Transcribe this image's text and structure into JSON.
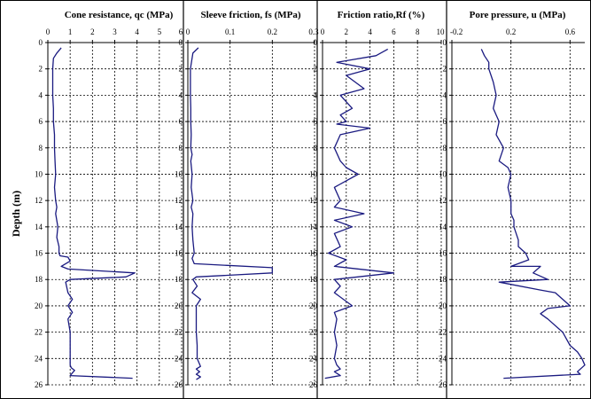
{
  "chart_data": [
    {
      "type": "line",
      "title": "Cone resistance, qc (MPa)",
      "ylabel": "Depth (m)",
      "xlim": [
        0,
        6
      ],
      "xticks": [
        0,
        1,
        2,
        3,
        4,
        5,
        6
      ],
      "ylim": [
        0,
        26
      ],
      "yticks": [
        0,
        2,
        4,
        6,
        8,
        10,
        12,
        14,
        16,
        18,
        20,
        22,
        24,
        26
      ],
      "y_inverted": true,
      "grid": true,
      "line_color": "#1a1a80",
      "series": [
        {
          "x": [
            0.6,
            0.4,
            0.25,
            0.22,
            0.22,
            0.22,
            0.25,
            0.25,
            0.3,
            0.3,
            0.32,
            0.35,
            0.3,
            0.35,
            0.4,
            0.35,
            0.45,
            0.4,
            0.5,
            0.5,
            0.55,
            0.9,
            1.0,
            0.8,
            0.6,
            0.9,
            3.9,
            3.5,
            1.0,
            0.8,
            0.9,
            1.1,
            0.9,
            1.1,
            0.9,
            1.0,
            1.0,
            1.0,
            1.0,
            1.05,
            1.2,
            1.1,
            1.0,
            3.8
          ],
          "y": [
            0.4,
            0.8,
            1.2,
            2,
            3,
            4,
            5,
            6,
            7,
            8,
            9,
            10,
            11,
            12,
            12.5,
            13,
            14,
            14.8,
            15.5,
            16,
            16.2,
            16.3,
            16.6,
            16.8,
            17.0,
            17.2,
            17.5,
            17.8,
            18.0,
            18.2,
            19,
            19.5,
            20,
            20.5,
            21,
            22,
            23,
            24,
            24.5,
            24.7,
            24.9,
            25.1,
            25.3,
            25.5
          ]
        }
      ]
    },
    {
      "type": "line",
      "title": "Sleeve friction, fs (MPa)",
      "xlim": [
        0,
        0.3
      ],
      "xticks": [
        0,
        0.1,
        0.2,
        0.3
      ],
      "ylim": [
        0,
        26
      ],
      "yticks": [
        0,
        2,
        4,
        6,
        8,
        10,
        12,
        14,
        16,
        18,
        20,
        22,
        24,
        26
      ],
      "y_inverted": true,
      "grid": true,
      "line_color": "#1a1a80",
      "series": [
        {
          "x": [
            0.025,
            0.012,
            0.006,
            0.006,
            0.006,
            0.007,
            0.007,
            0.008,
            0.007,
            0.01,
            0.007,
            0.01,
            0.008,
            0.012,
            0.008,
            0.012,
            0.01,
            0.012,
            0.015,
            0.01,
            0.015,
            0.2,
            0.2,
            0.02,
            0.012,
            0.022,
            0.01,
            0.03,
            0.02,
            0.02,
            0.02,
            0.02,
            0.022,
            0.022,
            0.03,
            0.02,
            0.028,
            0.02,
            0.03,
            0.02
          ],
          "y": [
            0.4,
            0.8,
            2,
            3,
            4,
            5,
            6,
            7,
            8,
            8.5,
            9,
            10,
            11,
            12,
            12.5,
            13,
            14,
            15,
            16,
            16.4,
            16.8,
            17.1,
            17.5,
            17.8,
            18,
            18.5,
            19,
            19.5,
            20,
            20.5,
            21,
            22,
            23,
            24,
            24.6,
            24.8,
            25,
            25.2,
            25.4,
            25.6
          ]
        }
      ]
    },
    {
      "type": "line",
      "title": "Friction ratio,Rf (%)",
      "xlim": [
        0,
        10
      ],
      "xticks": [
        0,
        2,
        4,
        6,
        8,
        10
      ],
      "ylim": [
        0,
        26
      ],
      "yticks": [
        0,
        2,
        4,
        6,
        8,
        10,
        12,
        14,
        16,
        18,
        20,
        22,
        24,
        26
      ],
      "y_inverted": true,
      "grid": true,
      "line_color": "#1a1a80",
      "series": [
        {
          "x": [
            5.5,
            4.5,
            1.2,
            4.0,
            2.0,
            3.5,
            1.5,
            2.5,
            1.5,
            2.0,
            1.2,
            4.0,
            1.5,
            1.0,
            1.5,
            2.0,
            3.0,
            1.0,
            1.5,
            1.0,
            3.5,
            1.0,
            2.5,
            1.0,
            1.5,
            0.5,
            2.0,
            1.0,
            6.0,
            1.0,
            1.5,
            1.0,
            2.5,
            1.0,
            1.2,
            1.0,
            1.2,
            1.0,
            1.2,
            1.5,
            1.0,
            1.5,
            0.2
          ],
          "y": [
            0.5,
            1.0,
            1.5,
            2.0,
            2.5,
            3.5,
            4,
            5,
            5.5,
            6,
            6.2,
            6.5,
            7,
            8,
            9,
            9.5,
            10,
            11,
            12,
            12.5,
            13,
            13.5,
            14,
            14.5,
            15.5,
            16,
            16.5,
            17,
            17.5,
            18,
            18.5,
            19,
            20,
            20.5,
            21,
            22,
            23,
            24,
            24.5,
            24.8,
            25.0,
            25.3,
            25.5
          ]
        }
      ]
    },
    {
      "type": "line",
      "title": "Pore pressure, u (MPa)",
      "xlim": [
        -0.2,
        0.7
      ],
      "xticks": [
        -0.2,
        0.2,
        0.6
      ],
      "xticklabels": [
        "-0.2",
        "0.2",
        "0.6"
      ],
      "ylim": [
        0,
        26
      ],
      "yticks": [
        0,
        2,
        4,
        6,
        8,
        10,
        12,
        14,
        16,
        18,
        20,
        22,
        24,
        26
      ],
      "y_inverted": true,
      "grid": true,
      "line_color": "#1a1a80",
      "series": [
        {
          "x": [
            0.0,
            0.02,
            0.05,
            0.05,
            0.08,
            0.1,
            0.08,
            0.1,
            0.12,
            0.1,
            0.15,
            0.12,
            0.18,
            0.2,
            0.18,
            0.2,
            0.2,
            0.22,
            0.22,
            0.25,
            0.25,
            0.3,
            0.32,
            0.2,
            0.4,
            0.35,
            0.45,
            0.12,
            0.4,
            0.5,
            0.55,
            0.6,
            0.45,
            0.4,
            0.45,
            0.55,
            0.6,
            0.65,
            0.68,
            0.7,
            0.65,
            0.67,
            0.15
          ],
          "y": [
            0.5,
            1.0,
            1.5,
            2,
            3,
            4,
            5,
            5.5,
            6,
            7,
            8,
            9,
            9.5,
            10,
            11,
            12,
            13,
            13.5,
            14,
            15,
            15.5,
            16,
            16.5,
            17,
            17,
            17.5,
            18,
            18.2,
            18.8,
            19,
            19.5,
            20,
            20.2,
            20.6,
            21,
            22,
            23,
            23.5,
            24,
            24.5,
            25,
            25.2,
            25.5
          ]
        }
      ]
    }
  ]
}
